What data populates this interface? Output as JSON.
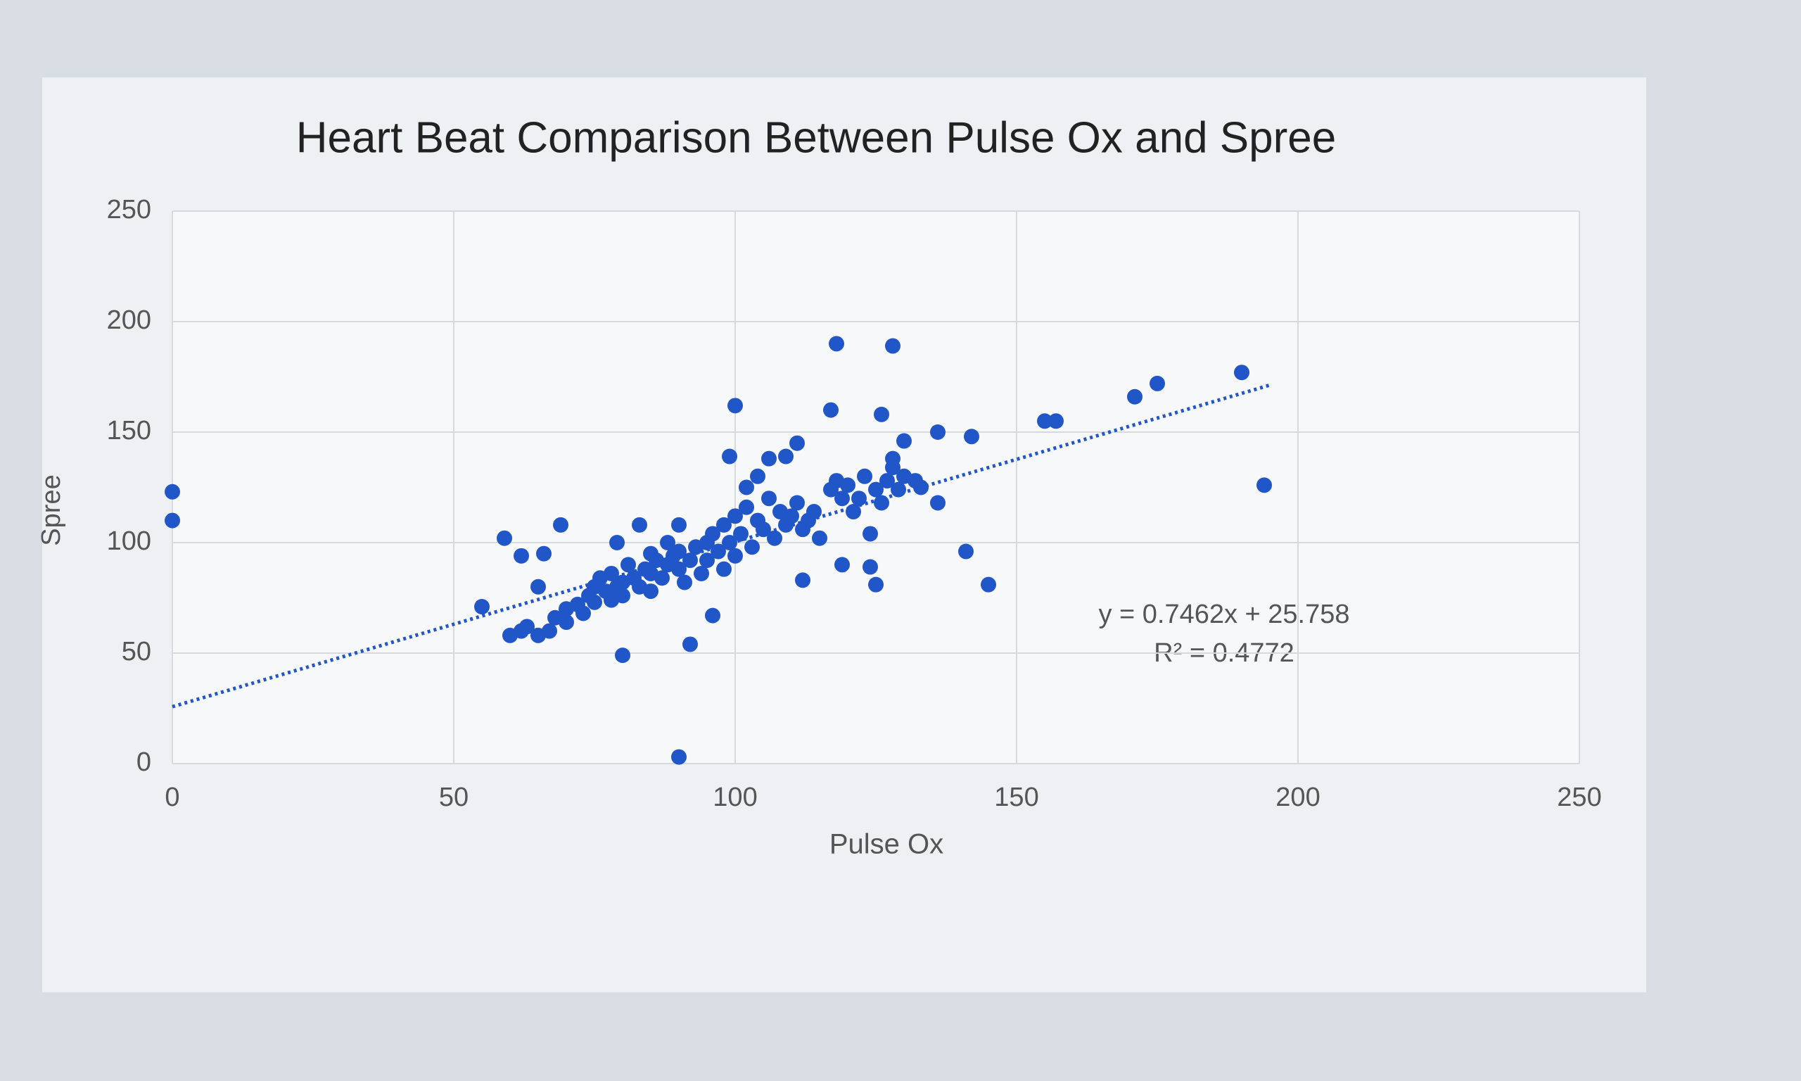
{
  "chart_data": {
    "type": "scatter",
    "title": "Heart Beat Comparison Between Pulse Ox and Spree",
    "x_label": "Pulse Ox",
    "y_label": "Spree",
    "color": "#2156c9",
    "xlim": [
      0,
      250
    ],
    "xticks": [
      0,
      50,
      100,
      150,
      200,
      250
    ],
    "ylim": [
      0,
      250
    ],
    "yticks": [
      0,
      50,
      100,
      150,
      200,
      250
    ],
    "grid": true,
    "x": [
      0,
      0,
      118,
      128,
      190,
      175,
      171,
      194,
      100,
      117,
      126,
      136,
      142,
      155,
      157,
      111,
      130,
      99,
      109,
      128,
      136,
      141,
      145,
      112,
      119,
      124,
      125,
      96,
      92,
      80,
      90,
      55,
      59,
      62,
      66,
      69,
      65,
      83,
      79,
      60,
      62,
      63,
      65,
      67,
      68,
      70,
      70,
      72,
      73,
      74,
      75,
      75,
      76,
      77,
      78,
      78,
      79,
      80,
      80,
      81,
      82,
      83,
      84,
      85,
      85,
      86,
      87,
      88,
      89,
      90,
      90,
      91,
      92,
      93,
      94,
      95,
      95,
      96,
      97,
      98,
      98,
      99,
      100,
      100,
      101,
      102,
      103,
      104,
      105,
      106,
      107,
      108,
      109,
      110,
      111,
      112,
      113,
      114,
      115,
      117,
      118,
      119,
      120,
      121,
      122,
      123,
      124,
      125,
      126,
      127,
      128,
      129,
      130,
      132,
      133,
      104,
      106,
      102,
      90,
      88,
      85
    ],
    "values": [
      123,
      110,
      190,
      189,
      177,
      172,
      166,
      126,
      162,
      160,
      158,
      150,
      148,
      155,
      155,
      145,
      146,
      139,
      139,
      138,
      118,
      96,
      81,
      83,
      90,
      89,
      81,
      67,
      54,
      49,
      3,
      71,
      102,
      94,
      95,
      108,
      80,
      108,
      100,
      58,
      60,
      62,
      58,
      60,
      66,
      64,
      70,
      72,
      68,
      76,
      80,
      73,
      84,
      78,
      74,
      86,
      80,
      82,
      76,
      90,
      84,
      80,
      88,
      86,
      78,
      92,
      84,
      90,
      94,
      88,
      96,
      82,
      92,
      98,
      86,
      100,
      92,
      104,
      96,
      108,
      88,
      100,
      112,
      94,
      104,
      116,
      98,
      110,
      106,
      120,
      102,
      114,
      108,
      112,
      118,
      106,
      110,
      114,
      102,
      124,
      128,
      120,
      126,
      114,
      120,
      130,
      104,
      124,
      118,
      128,
      134,
      124,
      130,
      128,
      125,
      130,
      138,
      125,
      108,
      100,
      95
    ],
    "trendline": {
      "equation": "y = 0.7462x + 25.758",
      "r_squared_label": "R² = 0.4772",
      "slope": 0.7462,
      "intercept": 25.758,
      "x_range": [
        0,
        195
      ]
    }
  }
}
